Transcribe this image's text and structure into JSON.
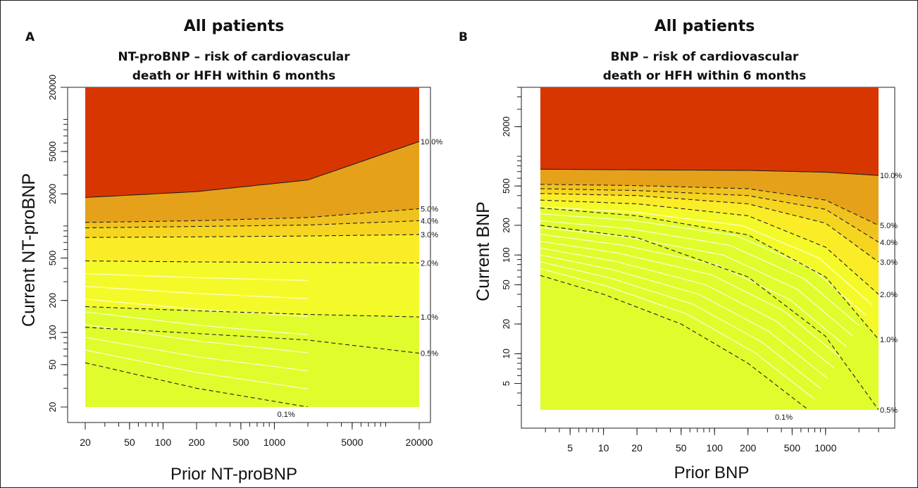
{
  "chart_data": [
    {
      "panel": "A",
      "type": "contour",
      "title": "All patients",
      "subtitle": [
        "NT-proBNP – risk of cardiovascular",
        "death or HFH within 6 months"
      ],
      "xlabel": "Prior NT-proBNP",
      "ylabel": "Current NT-proBNP",
      "x_scale": "log",
      "y_scale": "log",
      "xlim": [
        20,
        20000
      ],
      "ylim": [
        20,
        20000
      ],
      "x_ticks": [
        20,
        50,
        100,
        200,
        500,
        1000,
        5000,
        20000
      ],
      "x_tick_labels": [
        "20",
        "50",
        "100",
        "200",
        "500",
        "1000",
        "5000",
        "20000"
      ],
      "y_ticks": [
        20,
        50,
        100,
        200,
        500,
        2000,
        5000,
        20000
      ],
      "y_tick_labels": [
        "20",
        "50",
        "100",
        "200",
        "500",
        "2000",
        "5000",
        "20000"
      ],
      "contours": [
        {
          "label": "0.1%",
          "current_at_prior": [
            [
              20,
              52
            ],
            [
              200,
              30
            ],
            [
              2000,
              20
            ]
          ]
        },
        {
          "label": "0.5%",
          "current_at_prior": [
            [
              20,
              112
            ],
            [
              200,
              98
            ],
            [
              2000,
              85
            ],
            [
              20000,
              64
            ]
          ]
        },
        {
          "label": "1.0%",
          "current_at_prior": [
            [
              20,
              175
            ],
            [
              200,
              160
            ],
            [
              2000,
              148
            ],
            [
              20000,
              140
            ]
          ]
        },
        {
          "label": "2.0%",
          "current_at_prior": [
            [
              20,
              470
            ],
            [
              200,
              460
            ],
            [
              2000,
              455
            ],
            [
              20000,
              450
            ]
          ]
        },
        {
          "label": "3.0%",
          "current_at_prior": [
            [
              20,
              780
            ],
            [
              200,
              790
            ],
            [
              2000,
              805
            ],
            [
              20000,
              830
            ]
          ]
        },
        {
          "label": "4.0%",
          "current_at_prior": [
            [
              20,
              960
            ],
            [
              200,
              990
            ],
            [
              2000,
              1020
            ],
            [
              20000,
              1120
            ]
          ]
        },
        {
          "label": "5.0%",
          "current_at_prior": [
            [
              20,
              1080
            ],
            [
              200,
              1120
            ],
            [
              2000,
              1200
            ],
            [
              20000,
              1450
            ]
          ]
        },
        {
          "label": "10.0%",
          "current_at_prior": [
            [
              20,
              1850
            ],
            [
              200,
              2100
            ],
            [
              2000,
              2700
            ],
            [
              20000,
              6200
            ]
          ]
        }
      ]
    },
    {
      "panel": "B",
      "type": "contour",
      "title": "All patients",
      "subtitle": [
        "BNP – risk of cardiovascular",
        "death or HFH within 6 months"
      ],
      "xlabel": "Prior BNP",
      "ylabel": "Current BNP",
      "x_scale": "log",
      "y_scale": "log",
      "xlim": [
        2.7,
        3000
      ],
      "ylim": [
        2.7,
        5000
      ],
      "x_ticks": [
        5,
        10,
        20,
        50,
        100,
        200,
        500,
        1000
      ],
      "x_tick_labels": [
        "5",
        "10",
        "20",
        "50",
        "100",
        "200",
        "500",
        "1000"
      ],
      "y_ticks": [
        5,
        10,
        20,
        50,
        100,
        200,
        500,
        2000
      ],
      "y_tick_labels": [
        "5",
        "10",
        "20",
        "50",
        "100",
        "200",
        "500",
        "2000"
      ],
      "contours": [
        {
          "label": "0.1%",
          "current_at_prior": [
            [
              2.7,
              62
            ],
            [
              10,
              40
            ],
            [
              50,
              20
            ],
            [
              200,
              8
            ],
            [
              700,
              2.7
            ]
          ]
        },
        {
          "label": "0.5%",
          "current_at_prior": [
            [
              2.7,
              200
            ],
            [
              20,
              150
            ],
            [
              200,
              60
            ],
            [
              1000,
              15
            ],
            [
              3000,
              2.7
            ]
          ]
        },
        {
          "label": "1.0%",
          "current_at_prior": [
            [
              2.7,
              300
            ],
            [
              20,
              250
            ],
            [
              200,
              160
            ],
            [
              1000,
              60
            ],
            [
              3000,
              14
            ]
          ]
        },
        {
          "label": "2.0%",
          "current_at_prior": [
            [
              2.7,
              360
            ],
            [
              20,
              330
            ],
            [
              200,
              250
            ],
            [
              1000,
              120
            ],
            [
              3000,
              40
            ]
          ]
        },
        {
          "label": "3.0%",
          "current_at_prior": [
            [
              2.7,
              420
            ],
            [
              20,
              400
            ],
            [
              200,
              330
            ],
            [
              1000,
              210
            ],
            [
              3000,
              85
            ]
          ]
        },
        {
          "label": "4.0%",
          "current_at_prior": [
            [
              2.7,
              470
            ],
            [
              20,
              450
            ],
            [
              200,
              400
            ],
            [
              1000,
              290
            ],
            [
              3000,
              135
            ]
          ]
        },
        {
          "label": "5.0%",
          "current_at_prior": [
            [
              2.7,
              520
            ],
            [
              20,
              505
            ],
            [
              200,
              470
            ],
            [
              1000,
              360
            ],
            [
              3000,
              200
            ]
          ]
        },
        {
          "label": "10.0%",
          "current_at_prior": [
            [
              2.7,
              740
            ],
            [
              20,
              730
            ],
            [
              200,
              720
            ],
            [
              1000,
              690
            ],
            [
              3000,
              640
            ]
          ]
        }
      ]
    }
  ],
  "colors": {
    "band_highest": "#d83600",
    "band_5_10": "#e5a11a",
    "band_4_5": "#f0c21f",
    "band_3_4": "#f5d520",
    "band_2_3": "#fbec28",
    "band_1_2": "#f4fa2a",
    "band_lowest": "#e1fc2d",
    "contour_line": "#222222",
    "fine_line": "#ffffff"
  }
}
